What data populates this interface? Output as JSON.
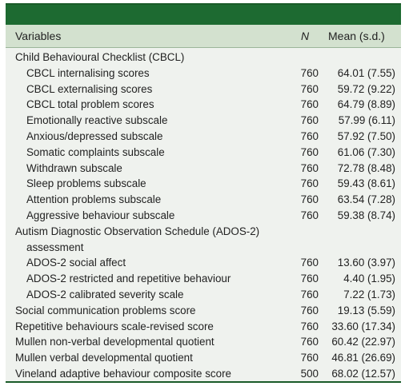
{
  "header": {
    "variables": "Variables",
    "n": "N",
    "mean": "Mean (s.d.)"
  },
  "rows": [
    {
      "label": "Child Behavioural Checklist (CBCL)",
      "n": "",
      "mean": "",
      "indent": false
    },
    {
      "label": "CBCL internalising scores",
      "n": "760",
      "mean": "64.01 (7.55)",
      "indent": true
    },
    {
      "label": "CBCL externalising scores",
      "n": "760",
      "mean": "59.72 (9.22)",
      "indent": true
    },
    {
      "label": "CBCL total problem scores",
      "n": "760",
      "mean": "64.79 (8.89)",
      "indent": true
    },
    {
      "label": "Emotionally reactive subscale",
      "n": "760",
      "mean": "57.99 (6.11)",
      "indent": true
    },
    {
      "label": "Anxious/depressed subscale",
      "n": "760",
      "mean": "57.92 (7.50)",
      "indent": true
    },
    {
      "label": "Somatic complaints subscale",
      "n": "760",
      "mean": "61.06 (7.30)",
      "indent": true
    },
    {
      "label": "Withdrawn subscale",
      "n": "760",
      "mean": "72.78 (8.48)",
      "indent": true
    },
    {
      "label": "Sleep problems subscale",
      "n": "760",
      "mean": "59.43 (8.61)",
      "indent": true
    },
    {
      "label": "Attention problems subscale",
      "n": "760",
      "mean": "63.54 (7.28)",
      "indent": true
    },
    {
      "label": "Aggressive behaviour subscale",
      "n": "760",
      "mean": "59.38 (8.74)",
      "indent": true
    },
    {
      "label": "Autism Diagnostic Observation Schedule (ADOS-2)",
      "n": "",
      "mean": "",
      "indent": false
    },
    {
      "label": "assessment",
      "n": "",
      "mean": "",
      "indent": true
    },
    {
      "label": "ADOS-2 social affect",
      "n": "760",
      "mean": "13.60 (3.97)",
      "indent": true
    },
    {
      "label": "ADOS-2 restricted and repetitive behaviour",
      "n": "760",
      "mean": "4.40 (1.95)",
      "indent": true
    },
    {
      "label": "ADOS-2 calibrated severity scale",
      "n": "760",
      "mean": "7.22 (1.73)",
      "indent": true
    },
    {
      "label": "Social communication problems score",
      "n": "760",
      "mean": "19.13 (5.59)",
      "indent": false
    },
    {
      "label": "Repetitive behaviours scale-revised score",
      "n": "760",
      "mean": "33.60 (17.34)",
      "indent": false
    },
    {
      "label": "Mullen non-verbal developmental quotient",
      "n": "760",
      "mean": "60.42 (22.97)",
      "indent": false
    },
    {
      "label": "Mullen verbal developmental quotient",
      "n": "760",
      "mean": "46.81 (26.69)",
      "indent": false
    },
    {
      "label": "Vineland adaptive behaviour composite score",
      "n": "500",
      "mean": "68.02 (12.57)",
      "indent": false
    }
  ],
  "colors": {
    "title_bar": "#1d6a31",
    "header_bg": "#d3e1cf",
    "table_bg": "#eff2ee"
  }
}
